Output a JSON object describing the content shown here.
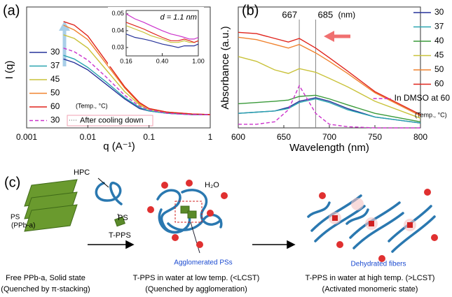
{
  "chart_data": [
    {
      "type": "line",
      "panel_label": "(a)",
      "xlabel": "q (A⁻¹)",
      "ylabel": "I (q)",
      "xscale": "log",
      "xlim": [
        0.001,
        1
      ],
      "xticks": [
        0.001,
        0.01,
        0.1,
        1
      ],
      "ylim": [
        0,
        10
      ],
      "legend_note": "(Temp., °C)",
      "x": [
        0.004,
        0.006,
        0.01,
        0.02,
        0.04,
        0.07,
        0.1,
        0.2,
        0.5,
        1
      ],
      "series": [
        {
          "name": "30",
          "color": "#27339a",
          "values": [
            5.7,
            5.4,
            4.8,
            3.6,
            2.4,
            1.6,
            1.4,
            1.2,
            1.1,
            1.1
          ]
        },
        {
          "name": "37",
          "color": "#2aa5b0",
          "values": [
            6.0,
            5.7,
            5.0,
            3.8,
            2.5,
            1.7,
            1.4,
            1.2,
            1.1,
            1.1
          ]
        },
        {
          "name": "45",
          "color": "#c9c23a",
          "values": [
            7.7,
            7.4,
            6.6,
            4.8,
            3.0,
            1.9,
            1.5,
            1.3,
            1.15,
            1.1
          ]
        },
        {
          "name": "50",
          "color": "#f0822e",
          "values": [
            8.5,
            8.1,
            7.3,
            5.3,
            3.3,
            2.0,
            1.6,
            1.3,
            1.15,
            1.1
          ]
        },
        {
          "name": "60",
          "color": "#e0241c",
          "values": [
            8.8,
            8.5,
            7.6,
            5.5,
            3.4,
            2.1,
            1.6,
            1.3,
            1.15,
            1.1
          ]
        },
        {
          "name": "30",
          "color": "#cc33cc",
          "dashed": true,
          "note": "After cooling down",
          "values": [
            6.6,
            6.3,
            5.6,
            4.2,
            2.7,
            1.8,
            1.5,
            1.2,
            1.1,
            1.1
          ]
        }
      ]
    },
    {
      "type": "line",
      "xscale": "log",
      "xlim": [
        0.16,
        1
      ],
      "xticks": [
        0.16,
        {
          "value": 0.4,
          "label": "0.40"
        },
        {
          "value": 1,
          "label": "1.00"
        }
      ],
      "ylim": [
        0.025,
        0.052
      ],
      "yticks": [
        0.03,
        0.04,
        0.05
      ],
      "annotation": "d = 1.1 nm",
      "x": [
        0.16,
        0.2,
        0.25,
        0.3,
        0.4,
        0.5,
        0.6,
        0.7,
        0.8,
        0.9,
        1
      ],
      "series": [
        {
          "color": "#27339a",
          "values": [
            0.038,
            0.036,
            0.035,
            0.034,
            0.032,
            0.031,
            0.03,
            0.031,
            0.031,
            0.031,
            0.032
          ]
        },
        {
          "color": "#c9c23a",
          "values": [
            0.043,
            0.041,
            0.039,
            0.037,
            0.035,
            0.033,
            0.033,
            0.034,
            0.033,
            0.033,
            0.034
          ]
        },
        {
          "color": "#e0241c",
          "values": [
            0.045,
            0.043,
            0.041,
            0.039,
            0.036,
            0.034,
            0.034,
            0.035,
            0.034,
            0.033,
            0.034
          ]
        },
        {
          "color": "#cc33cc",
          "values": [
            0.05,
            0.047,
            0.045,
            0.043,
            0.04,
            0.038,
            0.037,
            0.036,
            0.035,
            0.035,
            0.036
          ]
        }
      ]
    },
    {
      "type": "line",
      "panel_label": "(b)",
      "xlabel": "Wavelength (nm)",
      "ylabel": "Absorbance (a.u.)",
      "xlim": [
        600,
        800
      ],
      "xticks": [
        600,
        650,
        700,
        750,
        800
      ],
      "ylim": [
        0,
        1
      ],
      "vlines": [
        667,
        685
      ],
      "vline_unit": "(nm)",
      "legend_note": "(Temp., °C)",
      "x": [
        600,
        620,
        640,
        655,
        667,
        685,
        700,
        720,
        750,
        800
      ],
      "series": [
        {
          "name": "30",
          "color": "#27339a",
          "values": [
            0.12,
            0.13,
            0.14,
            0.17,
            0.22,
            0.25,
            0.22,
            0.16,
            0.09,
            0.04
          ]
        },
        {
          "name": "37",
          "color": "#2aa5b0",
          "values": [
            0.12,
            0.13,
            0.14,
            0.16,
            0.21,
            0.24,
            0.21,
            0.15,
            0.09,
            0.04
          ]
        },
        {
          "name": "40",
          "color": "#3a9a3a",
          "values": [
            0.2,
            0.21,
            0.22,
            0.23,
            0.26,
            0.27,
            0.24,
            0.19,
            0.12,
            0.05
          ]
        },
        {
          "name": "45",
          "color": "#c9c23a",
          "values": [
            0.59,
            0.55,
            0.48,
            0.45,
            0.49,
            0.46,
            0.41,
            0.34,
            0.22,
            0.08
          ]
        },
        {
          "name": "50",
          "color": "#f0822e",
          "values": [
            0.75,
            0.73,
            0.69,
            0.66,
            0.69,
            0.62,
            0.55,
            0.45,
            0.29,
            0.1
          ]
        },
        {
          "name": "60",
          "color": "#e0241c",
          "values": [
            0.79,
            0.78,
            0.74,
            0.71,
            0.74,
            0.66,
            0.58,
            0.47,
            0.3,
            0.11
          ]
        },
        {
          "name": "In DMSO at 60",
          "color": "#cc33cc",
          "dashed": true,
          "values": [
            0.03,
            0.03,
            0.05,
            0.15,
            0.35,
            0.12,
            0.03,
            0.01,
            0,
            0
          ]
        }
      ]
    }
  ],
  "diagram": {
    "panel_label": "(c)",
    "hpc": "HPC",
    "ps": "PS",
    "ps_stack": "PS",
    "ps_stack_sub": "(PPb-a)",
    "arrow_label": "T-PPS",
    "water": "H₂O",
    "agglomerated": "Agglomerated PSs",
    "fibers": "Dehydrated fibers",
    "captions": [
      [
        "Free PPb-a, Solid state",
        "(Quenched by π-stacking)"
      ],
      [
        "T-PPS in water at low temp. (<LCST)",
        "(Quenched by agglomeration)"
      ],
      [
        "T-PPS in water at high temp. (>LCST)",
        "(Activated monomeric state)"
      ]
    ]
  }
}
